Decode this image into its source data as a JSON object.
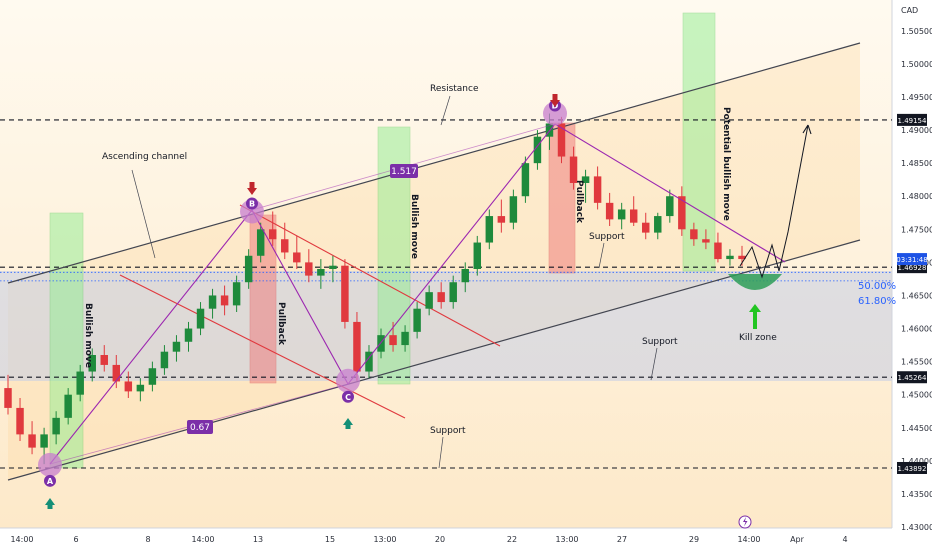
{
  "chart_data": {
    "type": "candlestick",
    "currency": "CAD",
    "y_ticks": [
      "1.50500",
      "1.50000",
      "1.49500",
      "1.49000",
      "1.48500",
      "1.48000",
      "1.47500",
      "1.47000",
      "1.46500",
      "1.46000",
      "1.45500",
      "1.45000",
      "1.44500",
      "1.44000",
      "1.43500",
      "1.43000"
    ],
    "x_ticks": [
      "14:00",
      "6",
      "8",
      "14:00",
      "13",
      "15",
      "13:00",
      "20",
      "22",
      "13:00",
      "27",
      "29",
      "14:00",
      "Apr",
      "4"
    ],
    "ylim": [
      1.43,
      1.508
    ],
    "price_levels": [
      {
        "label": "1.49154",
        "value": 1.49154,
        "style": "dark"
      },
      {
        "label": "1.46928",
        "value": 1.46928,
        "style": "dark"
      },
      {
        "label": "1.45264",
        "value": 1.45264,
        "style": "dark"
      },
      {
        "label": "1.43892",
        "value": 1.43892,
        "style": "dark"
      },
      {
        "label": "03:31:48",
        "value": 1.4705,
        "style": "blue"
      }
    ],
    "fib_levels": [
      {
        "label": "50.00%",
        "value": 1.4685
      },
      {
        "label": "61.80%",
        "value": 1.4672
      }
    ],
    "pivots": [
      {
        "label": "A",
        "value": 1.4394
      },
      {
        "label": "B",
        "value": 1.4777
      },
      {
        "label": "C",
        "value": 1.4521
      },
      {
        "label": "D",
        "value": 1.4925
      }
    ],
    "ratios": [
      "1.517",
      "0.67"
    ],
    "annotations": {
      "ascending_channel": "Ascending channel",
      "resistance": "Resistance",
      "support1": "Support",
      "support2": "Support",
      "support3": "Support",
      "bullish_move1": "Bullish move",
      "bullish_move2": "Bullish move",
      "pullback1": "Pullback",
      "pullback2": "Pullback",
      "potential": "Potential bullish move",
      "kill_zone": "Kill zone"
    },
    "candles": [
      [
        1.451,
        1.453,
        1.447,
        1.448
      ],
      [
        1.448,
        1.4495,
        1.443,
        1.444
      ],
      [
        1.444,
        1.446,
        1.441,
        1.442
      ],
      [
        1.442,
        1.445,
        1.4395,
        1.444
      ],
      [
        1.444,
        1.4475,
        1.4425,
        1.4465
      ],
      [
        1.4465,
        1.451,
        1.4455,
        1.45
      ],
      [
        1.45,
        1.4545,
        1.449,
        1.4535
      ],
      [
        1.4535,
        1.457,
        1.452,
        1.456
      ],
      [
        1.456,
        1.4575,
        1.4535,
        1.4545
      ],
      [
        1.4545,
        1.456,
        1.451,
        1.452
      ],
      [
        1.452,
        1.4535,
        1.4495,
        1.4505
      ],
      [
        1.4505,
        1.4525,
        1.449,
        1.4515
      ],
      [
        1.4515,
        1.455,
        1.4505,
        1.454
      ],
      [
        1.454,
        1.4575,
        1.453,
        1.4565
      ],
      [
        1.4565,
        1.459,
        1.455,
        1.458
      ],
      [
        1.458,
        1.461,
        1.4565,
        1.46
      ],
      [
        1.46,
        1.464,
        1.459,
        1.463
      ],
      [
        1.463,
        1.466,
        1.4615,
        1.465
      ],
      [
        1.465,
        1.4665,
        1.462,
        1.4635
      ],
      [
        1.4635,
        1.468,
        1.4625,
        1.467
      ],
      [
        1.467,
        1.472,
        1.466,
        1.471
      ],
      [
        1.471,
        1.476,
        1.47,
        1.475
      ],
      [
        1.475,
        1.4777,
        1.4725,
        1.4735
      ],
      [
        1.4735,
        1.476,
        1.4705,
        1.4715
      ],
      [
        1.4715,
        1.474,
        1.469,
        1.47
      ],
      [
        1.47,
        1.472,
        1.467,
        1.468
      ],
      [
        1.468,
        1.4705,
        1.466,
        1.469
      ],
      [
        1.469,
        1.471,
        1.467,
        1.4695
      ],
      [
        1.4695,
        1.4705,
        1.46,
        1.461
      ],
      [
        1.461,
        1.4625,
        1.4521,
        1.4535
      ],
      [
        1.4535,
        1.4575,
        1.4525,
        1.4565
      ],
      [
        1.4565,
        1.46,
        1.4555,
        1.459
      ],
      [
        1.459,
        1.461,
        1.4565,
        1.4575
      ],
      [
        1.4575,
        1.4605,
        1.4565,
        1.4595
      ],
      [
        1.4595,
        1.464,
        1.4585,
        1.463
      ],
      [
        1.463,
        1.4665,
        1.462,
        1.4655
      ],
      [
        1.4655,
        1.467,
        1.463,
        1.464
      ],
      [
        1.464,
        1.468,
        1.463,
        1.467
      ],
      [
        1.467,
        1.47,
        1.4655,
        1.469
      ],
      [
        1.469,
        1.474,
        1.468,
        1.473
      ],
      [
        1.473,
        1.478,
        1.472,
        1.477
      ],
      [
        1.477,
        1.4795,
        1.4745,
        1.476
      ],
      [
        1.476,
        1.481,
        1.475,
        1.48
      ],
      [
        1.48,
        1.486,
        1.479,
        1.485
      ],
      [
        1.485,
        1.49,
        1.484,
        1.489
      ],
      [
        1.489,
        1.4925,
        1.487,
        1.491
      ],
      [
        1.491,
        1.492,
        1.485,
        1.486
      ],
      [
        1.486,
        1.4875,
        1.481,
        1.482
      ],
      [
        1.482,
        1.484,
        1.479,
        1.483
      ],
      [
        1.483,
        1.4845,
        1.478,
        1.479
      ],
      [
        1.479,
        1.4805,
        1.4755,
        1.4765
      ],
      [
        1.4765,
        1.479,
        1.475,
        1.478
      ],
      [
        1.478,
        1.48,
        1.4755,
        1.476
      ],
      [
        1.476,
        1.4775,
        1.4735,
        1.4745
      ],
      [
        1.4745,
        1.4775,
        1.4735,
        1.477
      ],
      [
        1.477,
        1.481,
        1.476,
        1.48
      ],
      [
        1.48,
        1.4815,
        1.474,
        1.475
      ],
      [
        1.475,
        1.476,
        1.4725,
        1.4735
      ],
      [
        1.4735,
        1.475,
        1.472,
        1.473
      ],
      [
        1.473,
        1.4745,
        1.47,
        1.4705
      ],
      [
        1.4705,
        1.472,
        1.4695,
        1.471
      ],
      [
        1.471,
        1.4725,
        1.4695,
        1.4705
      ]
    ]
  }
}
